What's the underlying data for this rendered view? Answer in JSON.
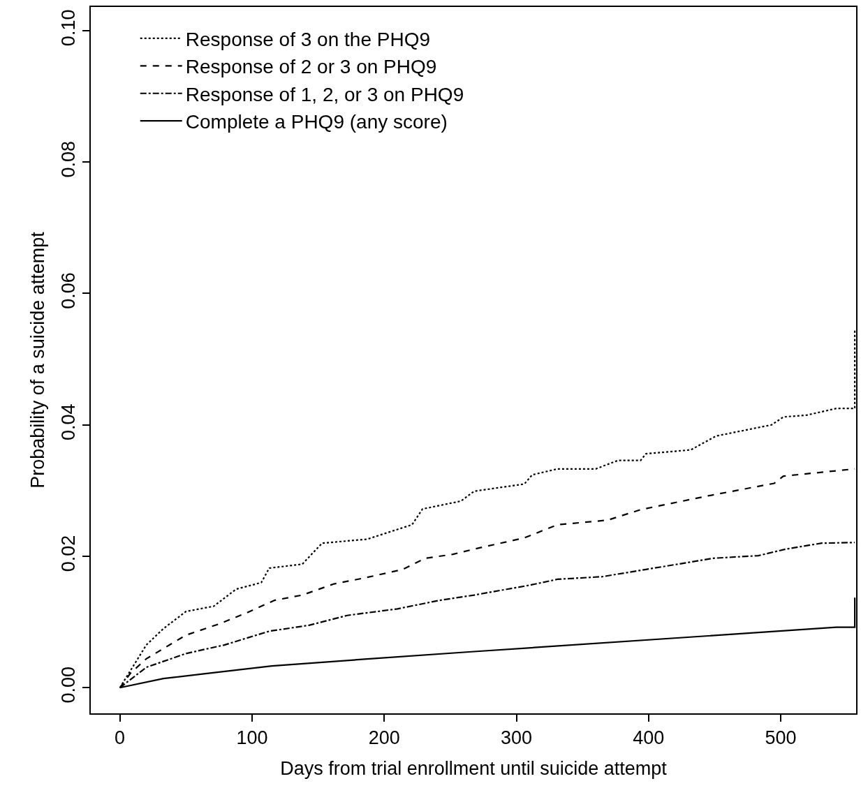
{
  "chart_data": {
    "type": "line",
    "xlabel": "Days from trial enrollment until suicide attempt",
    "ylabel": "Probability of a suicide attempt",
    "xlim": [
      -22,
      557
    ],
    "ylim": [
      -0.0039,
      0.1036
    ],
    "xticks": [
      0,
      100,
      200,
      300,
      400,
      500
    ],
    "yticks": [
      {
        "value": 0,
        "label": "0.00"
      },
      {
        "value": 0.02,
        "label": "0.02"
      },
      {
        "value": 0.04,
        "label": "0.04"
      },
      {
        "value": 0.06,
        "label": "0.06"
      },
      {
        "value": 0.08,
        "label": "0.08"
      },
      {
        "value": 0.1,
        "label": "0.10"
      }
    ],
    "legend": "top left",
    "marker": "none",
    "series": [
      {
        "name": "Response of 3 on the PHQ9",
        "color": "#000000",
        "line_style": "dotted",
        "x": [
          0,
          20,
          33,
          50,
          71,
          88,
          107,
          113,
          138,
          153,
          187,
          221,
          229,
          258,
          268,
          306,
          312,
          331,
          360,
          377,
          394,
          398,
          432,
          451,
          493,
          502,
          520,
          542,
          556,
          556
        ],
        "values": [
          0,
          0.0065,
          0.009,
          0.0116,
          0.0124,
          0.015,
          0.016,
          0.0182,
          0.0188,
          0.022,
          0.0226,
          0.0248,
          0.0272,
          0.0284,
          0.0299,
          0.031,
          0.0324,
          0.0333,
          0.0333,
          0.0346,
          0.0346,
          0.0356,
          0.0362,
          0.0383,
          0.04,
          0.0412,
          0.0415,
          0.0425,
          0.0425,
          0.0545
        ]
      },
      {
        "name": "Response of 2 or 3 on PHQ9",
        "color": "#000000",
        "line_style": "dashed",
        "x": [
          0,
          8,
          20,
          50,
          75,
          96,
          117,
          138,
          162,
          185,
          214,
          231,
          252,
          268,
          306,
          331,
          369,
          394,
          445,
          495,
          502,
          556
        ],
        "values": [
          0,
          0.0022,
          0.0044,
          0.008,
          0.0097,
          0.0114,
          0.0133,
          0.0141,
          0.0158,
          0.0167,
          0.018,
          0.0197,
          0.0203,
          0.0211,
          0.0228,
          0.0248,
          0.0255,
          0.0271,
          0.0292,
          0.0311,
          0.0322,
          0.0333
        ]
      },
      {
        "name": "Response of 1, 2, or 3 on PHQ9",
        "color": "#000000",
        "line_style": "dashdot",
        "x": [
          0,
          20,
          50,
          79,
          113,
          143,
          172,
          210,
          242,
          268,
          310,
          331,
          365,
          398,
          449,
          483,
          504,
          531,
          556
        ],
        "values": [
          0,
          0.0031,
          0.0052,
          0.0065,
          0.0086,
          0.0095,
          0.011,
          0.012,
          0.0133,
          0.0141,
          0.0156,
          0.0165,
          0.0169,
          0.018,
          0.0197,
          0.0201,
          0.0211,
          0.022,
          0.0221
        ]
      },
      {
        "name": "Complete a PHQ9 (any score)",
        "color": "#000000",
        "line_style": "solid",
        "x": [
          0,
          33,
          67,
          115,
          189,
          268,
          542,
          556,
          556
        ],
        "values": [
          0,
          0.0014,
          0.0022,
          0.0033,
          0.0044,
          0.0055,
          0.0092,
          0.0092,
          0.0137
        ]
      }
    ]
  }
}
